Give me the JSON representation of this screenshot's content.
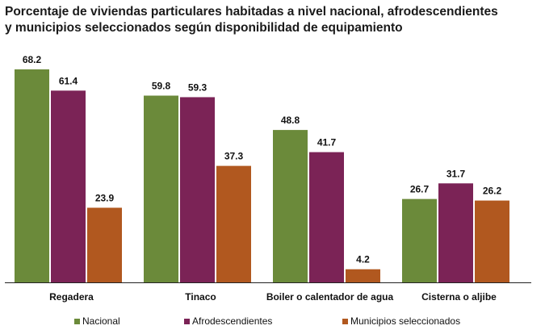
{
  "chart_data": {
    "type": "bar",
    "title_line1": "Porcentaje de viviendas particulares habitadas a nivel nacional, afrodescendientes",
    "title_line2": "y municipios seleccionados según disponibilidad de equipamiento",
    "categories": [
      "Regadera",
      "Tinaco",
      "Boiler o calentador de agua",
      "Cisterna o aljibe"
    ],
    "series": [
      {
        "name": "Nacional",
        "color": "#6b8a3a",
        "values": [
          68.2,
          59.8,
          48.8,
          26.7
        ]
      },
      {
        "name": "Afrodescendientes",
        "color": "#7b2356",
        "values": [
          61.4,
          59.3,
          41.7,
          31.7
        ]
      },
      {
        "name": "Municipios seleccionados",
        "color": "#b1581f",
        "values": [
          23.9,
          37.3,
          4.2,
          26.2
        ]
      }
    ],
    "value_labels": [
      [
        "68.2",
        "59.8",
        "48.8",
        "26.7"
      ],
      [
        "61.4",
        "59.3",
        "41.7",
        "31.7"
      ],
      [
        "23.9",
        "37.3",
        "4.2",
        "26.2"
      ]
    ],
    "ylim": [
      0,
      70
    ],
    "grid": false,
    "legend_position": "bottom"
  }
}
